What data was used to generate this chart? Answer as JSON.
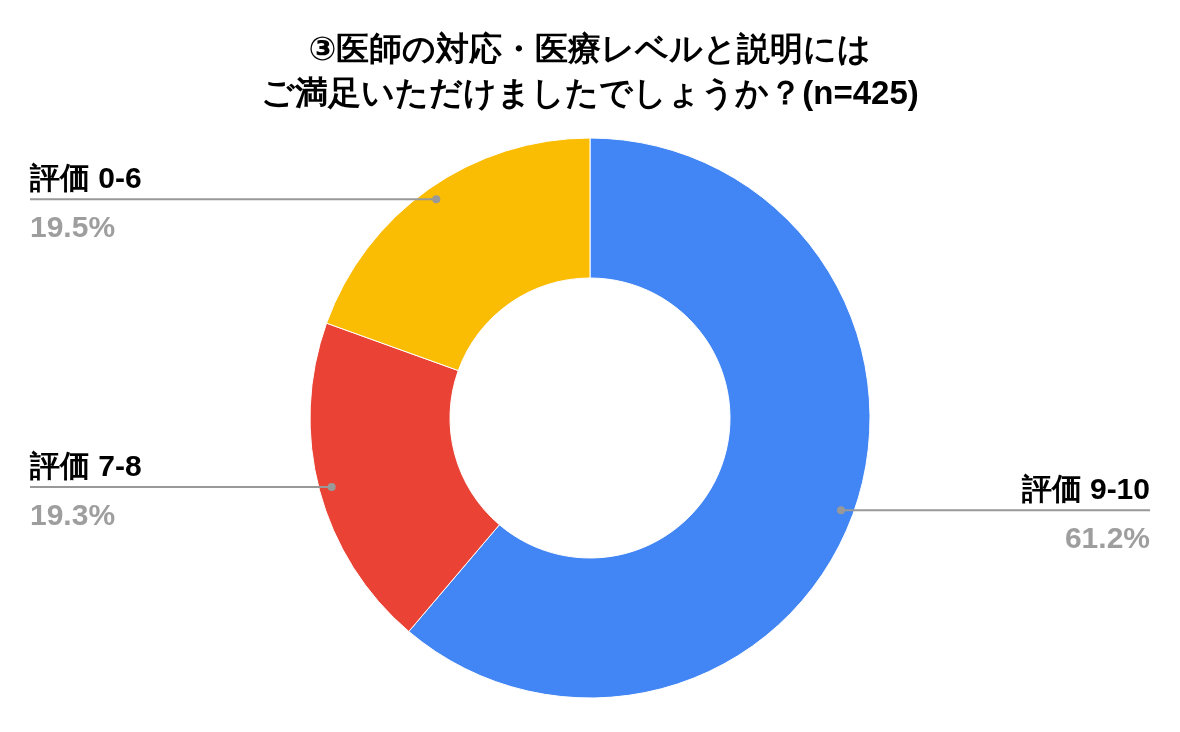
{
  "chart_data": {
    "type": "donut",
    "title": "③医師の対応・医療レベルと説明にはご満足いただけましたでしょうか？(n=425)",
    "categories": [
      "評価 9-10",
      "評価 7-8",
      "評価 0-6"
    ],
    "values": [
      61.2,
      19.3,
      19.5
    ],
    "colors": [
      "#4285f4",
      "#ea4335",
      "#fbbc04"
    ],
    "value_labels": [
      "61.2%",
      "19.3%",
      "19.5%"
    ]
  }
}
